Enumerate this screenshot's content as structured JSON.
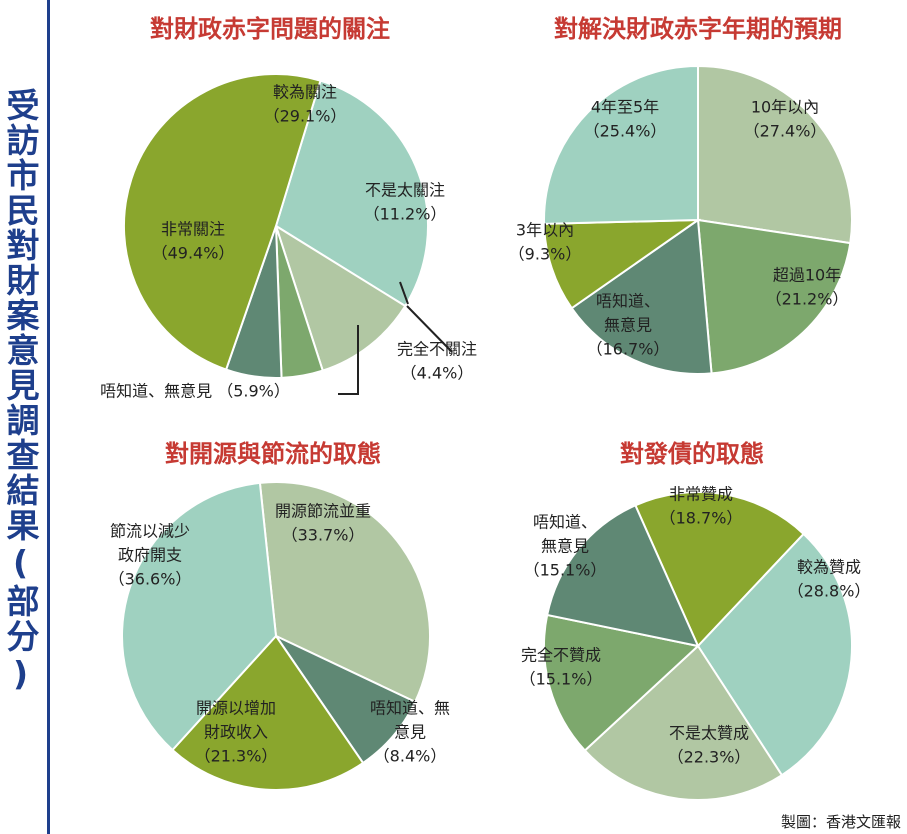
{
  "side_title": "受訪市民對財案意見調查結果(部分)",
  "credit": "製圖：香港文匯報",
  "colors": {
    "title": "#c63a33",
    "side_title": "#1e3f8c",
    "olive_green": "#8aa62d",
    "mint": "#9fd1c0",
    "sage_light": "#b1c7a3",
    "green_mid": "#7da86d",
    "teal_dark": "#5f8874"
  },
  "chart_data": [
    {
      "type": "pie",
      "title": "對財政赤字問題的關注",
      "slices": [
        {
          "label": "較為關注",
          "pct": "（29.1%）",
          "value": 29.1,
          "color": "#9fd1c0"
        },
        {
          "label": "不是太關注",
          "pct": "（11.2%）",
          "value": 11.2,
          "color": "#b1c7a3"
        },
        {
          "label": "完全不關注",
          "pct": "（4.4%）",
          "value": 4.4,
          "color": "#7da86d"
        },
        {
          "label": "唔知道、無意見",
          "pct": "（5.9%）",
          "value": 5.9,
          "color": "#5f8874"
        },
        {
          "label": "非常關注",
          "pct": "（49.4%）",
          "value": 49.4,
          "color": "#8aa62d"
        }
      ]
    },
    {
      "type": "pie",
      "title": "對解決財政赤字年期的預期",
      "slices": [
        {
          "label": "10年以內",
          "pct": "（27.4%）",
          "value": 27.4,
          "color": "#b1c7a3"
        },
        {
          "label": "超過10年",
          "pct": "（21.2%）",
          "value": 21.2,
          "color": "#7da86d"
        },
        {
          "label": "唔知道、無意見",
          "pct": "（16.7%）",
          "value": 16.7,
          "color": "#5f8874"
        },
        {
          "label": "3年以內",
          "pct": "（9.3%）",
          "value": 9.3,
          "color": "#8aa62d"
        },
        {
          "label": "4年至5年",
          "pct": "（25.4%）",
          "value": 25.4,
          "color": "#9fd1c0"
        }
      ]
    },
    {
      "type": "pie",
      "title": "對開源與節流的取態",
      "slices": [
        {
          "label": "開源節流並重",
          "pct": "（33.7%）",
          "value": 33.7,
          "color": "#b1c7a3"
        },
        {
          "label": "唔知道、無意見",
          "pct": "（8.4%）",
          "value": 8.4,
          "color": "#5f8874"
        },
        {
          "label": "開源以增加財政收入",
          "pct": "（21.3%）",
          "value": 21.3,
          "color": "#8aa62d"
        },
        {
          "label": "節流以減少政府開支",
          "pct": "（36.6%）",
          "value": 36.6,
          "color": "#9fd1c0"
        }
      ]
    },
    {
      "type": "pie",
      "title": "對發債的取態",
      "slices": [
        {
          "label": "非常贊成",
          "pct": "（18.7%）",
          "value": 18.7,
          "color": "#8aa62d"
        },
        {
          "label": "較為贊成",
          "pct": "（28.8%）",
          "value": 28.8,
          "color": "#9fd1c0"
        },
        {
          "label": "不是太贊成",
          "pct": "（22.3%）",
          "value": 22.3,
          "color": "#b1c7a3"
        },
        {
          "label": "完全不贊成",
          "pct": "（15.1%）",
          "value": 15.1,
          "color": "#7da86d"
        },
        {
          "label": "唔知道、無意見",
          "pct": "（15.1%）",
          "value": 15.1,
          "color": "#5f8874"
        }
      ]
    }
  ]
}
